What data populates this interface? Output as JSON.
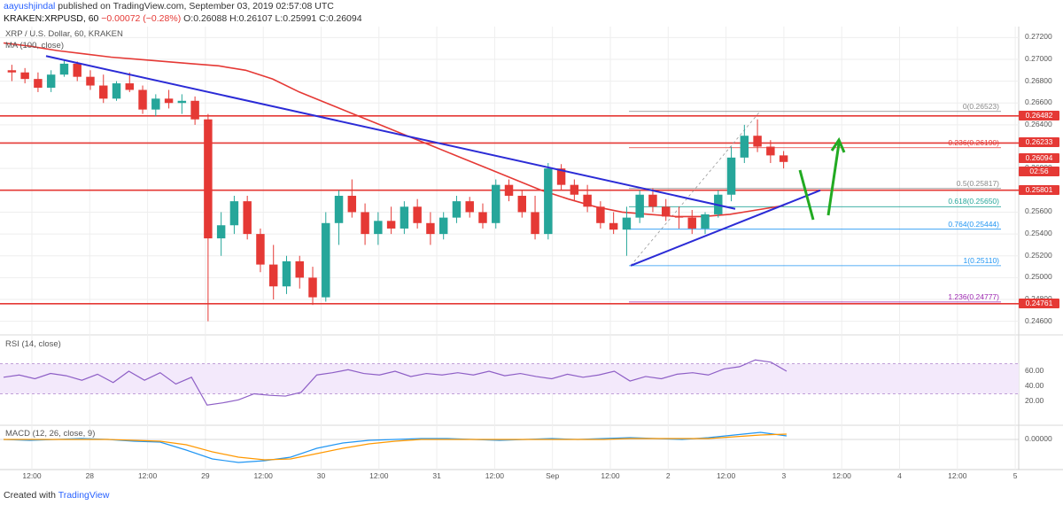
{
  "header": {
    "user": "aayushjindal",
    "published": " published on TradingView.com, September 03, 2019 02:57:08 UTC",
    "symbol": "KRAKEN:XRPUSD, 60",
    "change": "−0.00072 (−0.28%)",
    "open": "O:0.26088",
    "high": "H:0.26107",
    "low": "L:0.25991",
    "close": "C:0.26094"
  },
  "chart_title": "XRP / U.S. Dollar, 60, KRAKEN",
  "ma_label": "MA (100, close)",
  "rsi_label": "RSI (14, close)",
  "macd_label": "MACD (12, 26, close, 9)",
  "footer": {
    "created": "Created with",
    "brand": "TradingView"
  },
  "colors": {
    "candle_up": "#26a69a",
    "candle_down": "#e53935",
    "ma": "#e53935",
    "trendline": "#2b2bd6",
    "arrow": "#22aa22",
    "rsi": "#8e5fc6",
    "macd": "#2196f3",
    "signal": "#ff9800"
  },
  "chart_data": {
    "type": "candlestick",
    "ylim": [
      0.245,
      0.273
    ],
    "price_ticks": [
      "0.27200",
      "0.27000",
      "0.26800",
      "0.26600",
      "0.26400",
      "0.26000",
      "0.25600",
      "0.25400",
      "0.25200",
      "0.25000",
      "0.24800",
      "0.24600"
    ],
    "time_ticks": [
      "12:00",
      "28",
      "12:00",
      "29",
      "12:00",
      "30",
      "12:00",
      "31",
      "12:00",
      "Sep",
      "12:00",
      "2",
      "12:00",
      "3",
      "12:00",
      "4",
      "12:00",
      "5"
    ],
    "price_labels": [
      {
        "text": "0.26482",
        "value": 0.26482,
        "color": "#e53935"
      },
      {
        "text": "0.26233",
        "value": 0.26233,
        "color": "#e53935"
      },
      {
        "text": "0.26094",
        "value": 0.26094,
        "color": "#e53935"
      },
      {
        "text": "02:56",
        "value": 0.2597,
        "color": "#e53935"
      },
      {
        "text": "0.25801",
        "value": 0.25801,
        "color": "#e53935"
      },
      {
        "text": "0.24761",
        "value": 0.24761,
        "color": "#e53935"
      }
    ],
    "resistance_lines": [
      0.26482,
      0.26233,
      0.25801,
      0.24761
    ],
    "fib_levels": [
      {
        "label": "0(0.26523)",
        "value": 0.26523,
        "color": "#888888"
      },
      {
        "label": "0.236(0.26190)",
        "value": 0.2619,
        "color": "#e53935"
      },
      {
        "label": "0.5(0.25817)",
        "value": 0.25817,
        "color": "#888888"
      },
      {
        "label": "0.618(0.25650)",
        "value": 0.2565,
        "color": "#26a69a"
      },
      {
        "label": "0.764(0.25444)",
        "value": 0.25444,
        "color": "#2196f3"
      },
      {
        "label": "1(0.25110)",
        "value": 0.2511,
        "color": "#2196f3"
      },
      {
        "label": "1.236(0.24777)",
        "value": 0.24777,
        "color": "#9c27b0"
      }
    ],
    "candles": [
      [
        0.269,
        0.2695,
        0.268,
        0.2688
      ],
      [
        0.2688,
        0.2692,
        0.2678,
        0.2682
      ],
      [
        0.2682,
        0.2688,
        0.267,
        0.2674
      ],
      [
        0.2674,
        0.269,
        0.267,
        0.2686
      ],
      [
        0.2686,
        0.27,
        0.2684,
        0.2696
      ],
      [
        0.2696,
        0.2698,
        0.268,
        0.2684
      ],
      [
        0.2684,
        0.269,
        0.2672,
        0.2676
      ],
      [
        0.2676,
        0.2686,
        0.266,
        0.2664
      ],
      [
        0.2664,
        0.268,
        0.2662,
        0.2678
      ],
      [
        0.2678,
        0.2688,
        0.267,
        0.2672
      ],
      [
        0.2672,
        0.2676,
        0.265,
        0.2654
      ],
      [
        0.2654,
        0.2668,
        0.2648,
        0.2664
      ],
      [
        0.2664,
        0.2672,
        0.2655,
        0.266
      ],
      [
        0.266,
        0.2668,
        0.265,
        0.2662
      ],
      [
        0.2662,
        0.2666,
        0.264,
        0.2645
      ],
      [
        0.2645,
        0.265,
        0.246,
        0.2536
      ],
      [
        0.2536,
        0.256,
        0.252,
        0.2548
      ],
      [
        0.2548,
        0.2575,
        0.254,
        0.257
      ],
      [
        0.257,
        0.2575,
        0.2535,
        0.254
      ],
      [
        0.254,
        0.2545,
        0.2505,
        0.2512
      ],
      [
        0.2512,
        0.253,
        0.248,
        0.2492
      ],
      [
        0.2492,
        0.252,
        0.2485,
        0.2515
      ],
      [
        0.2515,
        0.252,
        0.249,
        0.25
      ],
      [
        0.25,
        0.251,
        0.2475,
        0.2482
      ],
      [
        0.2482,
        0.256,
        0.2478,
        0.255
      ],
      [
        0.255,
        0.258,
        0.253,
        0.2575
      ],
      [
        0.2575,
        0.259,
        0.2555,
        0.256
      ],
      [
        0.256,
        0.2568,
        0.253,
        0.254
      ],
      [
        0.254,
        0.256,
        0.253,
        0.2552
      ],
      [
        0.2552,
        0.2565,
        0.254,
        0.2545
      ],
      [
        0.2545,
        0.257,
        0.254,
        0.2565
      ],
      [
        0.2565,
        0.2572,
        0.2545,
        0.255
      ],
      [
        0.255,
        0.256,
        0.253,
        0.254
      ],
      [
        0.254,
        0.256,
        0.2535,
        0.2555
      ],
      [
        0.2555,
        0.2575,
        0.255,
        0.257
      ],
      [
        0.257,
        0.2574,
        0.2555,
        0.256
      ],
      [
        0.256,
        0.2568,
        0.2545,
        0.255
      ],
      [
        0.255,
        0.259,
        0.2545,
        0.2585
      ],
      [
        0.2585,
        0.259,
        0.257,
        0.2575
      ],
      [
        0.2575,
        0.258,
        0.2555,
        0.256
      ],
      [
        0.256,
        0.2575,
        0.2535,
        0.254
      ],
      [
        0.254,
        0.2605,
        0.2535,
        0.26
      ],
      [
        0.26,
        0.2604,
        0.258,
        0.2585
      ],
      [
        0.2585,
        0.259,
        0.257,
        0.2576
      ],
      [
        0.2576,
        0.2585,
        0.256,
        0.2565
      ],
      [
        0.2565,
        0.257,
        0.2545,
        0.255
      ],
      [
        0.255,
        0.256,
        0.254,
        0.2544
      ],
      [
        0.2544,
        0.2565,
        0.252,
        0.2555
      ],
      [
        0.2555,
        0.258,
        0.255,
        0.2576
      ],
      [
        0.2576,
        0.2582,
        0.256,
        0.2565
      ],
      [
        0.2565,
        0.2572,
        0.2552,
        0.2556
      ],
      [
        0.2556,
        0.2565,
        0.2545,
        0.2555
      ],
      [
        0.2555,
        0.2562,
        0.254,
        0.2545
      ],
      [
        0.2545,
        0.256,
        0.254,
        0.2558
      ],
      [
        0.2558,
        0.258,
        0.2555,
        0.2576
      ],
      [
        0.2576,
        0.262,
        0.257,
        0.261
      ],
      [
        0.261,
        0.264,
        0.2605,
        0.263
      ],
      [
        0.263,
        0.2645,
        0.2615,
        0.262
      ],
      [
        0.262,
        0.2626,
        0.2605,
        0.2612
      ],
      [
        0.2612,
        0.2616,
        0.26,
        0.2606
      ]
    ],
    "ma100": [
      0.2715,
      0.2712,
      0.2708,
      0.2705,
      0.2702,
      0.27,
      0.2698,
      0.2696,
      0.2694,
      0.269,
      0.2682,
      0.267,
      0.266,
      0.265,
      0.264,
      0.263,
      0.262,
      0.261,
      0.26,
      0.259,
      0.258,
      0.2572,
      0.2565,
      0.256,
      0.2558,
      0.2556,
      0.2556,
      0.2558,
      0.2562,
      0.2566
    ],
    "rsi": [
      52,
      55,
      50,
      57,
      54,
      48,
      56,
      45,
      60,
      48,
      58,
      43,
      52,
      15,
      18,
      22,
      30,
      28,
      27,
      32,
      55,
      58,
      62,
      57,
      55,
      60,
      53,
      57,
      55,
      58,
      55,
      60,
      54,
      57,
      53,
      50,
      56,
      52,
      55,
      60,
      47,
      53,
      50,
      56,
      58,
      55,
      63,
      66,
      75,
      72,
      60
    ]
  }
}
